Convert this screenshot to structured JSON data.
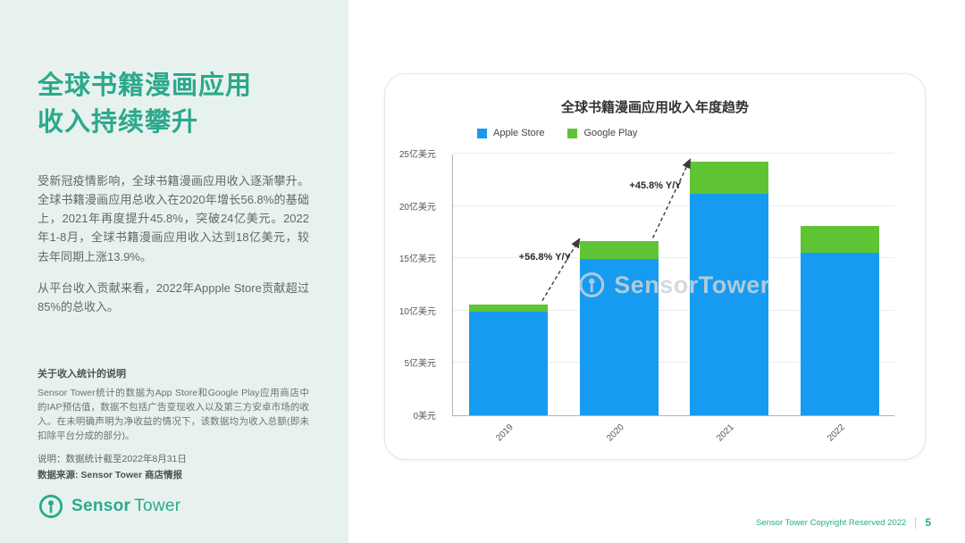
{
  "theme": {
    "accent_green": "#2BA98B",
    "sidebar_bg": "#E7F2EF"
  },
  "sidebar": {
    "title_lines": [
      "全球书籍漫画应用",
      "收入持续攀升"
    ],
    "paragraphs": [
      "受新冠疫情影响，全球书籍漫画应用收入逐渐攀升。全球书籍漫画应用总收入在2020年增长56.8%的基础上，2021年再度提升45.8%，突破24亿美元。2022年1-8月，全球书籍漫画应用收入达到18亿美元，较去年同期上涨13.9%。",
      "从平台收入贡献来看，2022年Appple Store贡献超过85%的总收入。"
    ],
    "notes_title": "关于收入统计的说明",
    "notes_body": "Sensor Tower统计的数据为App Store和Google Play应用商店中的IAP预估值，数据不包括广告变现收入以及第三方安卓市场的收入。在未明确声明为净收益的情况下，该数据均为收入总额(即未扣除平台分成的部分)。",
    "note_date": "说明：数据统计截至2022年8月31日",
    "note_source": "数据来源: Sensor Tower 商店情报",
    "logo": {
      "part1": "Sensor",
      "part2": "Tower"
    }
  },
  "footer": {
    "copyright": "Sensor Tower Copyright Reserved 2022",
    "page_number": "5"
  },
  "chart_data": {
    "type": "bar",
    "stacked": true,
    "title": "全球书籍漫画应用收入年度趋势",
    "categories": [
      "2019",
      "2020",
      "2021",
      "2022"
    ],
    "series": [
      {
        "name": "Apple Store",
        "color": "#169BF1",
        "values": [
          9.9,
          14.9,
          21.2,
          15.5
        ]
      },
      {
        "name": "Google Play",
        "color": "#5FC433",
        "values": [
          0.7,
          1.7,
          3.0,
          2.6
        ]
      }
    ],
    "unit": "亿美元",
    "ymax": 25,
    "ytick_step": 5,
    "ytick_labels": [
      "0美元",
      "5亿美元",
      "10亿美元",
      "15亿美元",
      "20亿美元",
      "25亿美元"
    ],
    "legend_position": "top",
    "grid": true,
    "annotations": [
      {
        "label": "+56.8% Y/Y",
        "from_index": 0,
        "to_index": 1
      },
      {
        "label": "+45.8% Y/Y",
        "from_index": 1,
        "to_index": 2
      }
    ],
    "watermark": "SensorTower"
  }
}
